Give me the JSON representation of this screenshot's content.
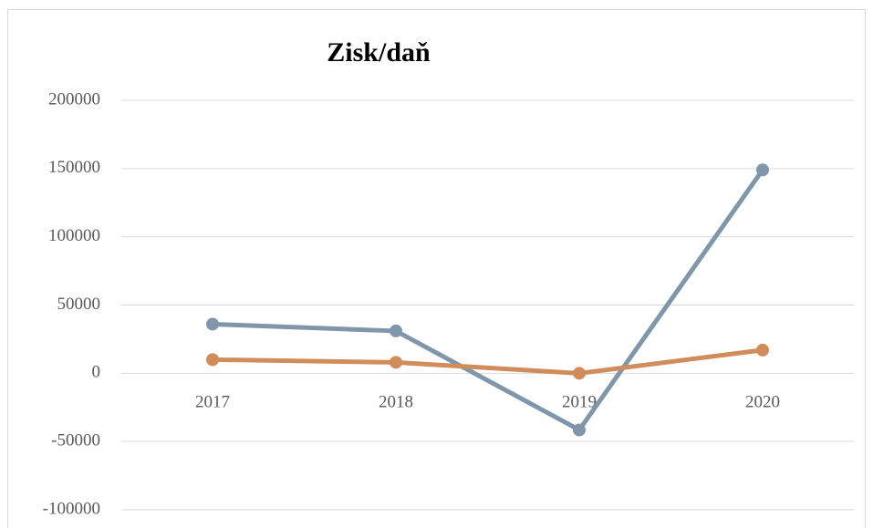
{
  "chart_data": {
    "type": "line",
    "title": "Zisk/daň",
    "categories": [
      "2017",
      "2018",
      "2019",
      "2020"
    ],
    "series": [
      {
        "color": "#7f96ab",
        "values": [
          36000,
          31000,
          -41500,
          149000
        ]
      },
      {
        "color": "#d08c5a",
        "values": [
          10000,
          8000,
          0,
          17000
        ]
      }
    ],
    "ylim": [
      -100000,
      200000
    ],
    "yticks": [
      -100000,
      -50000,
      0,
      50000,
      100000,
      150000,
      200000
    ],
    "grid": true
  }
}
